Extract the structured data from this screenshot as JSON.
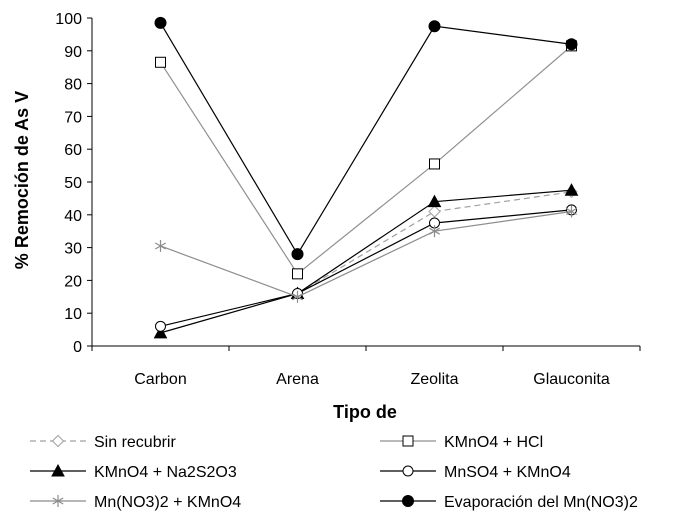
{
  "chart_data": {
    "type": "line",
    "categories": [
      "Carbon",
      "Arena",
      "Zeolita",
      "Glauconita"
    ],
    "xlabel": "Tipo de",
    "ylabel": "% Remoción de As V",
    "ylim": [
      0,
      100
    ],
    "yticks": [
      0,
      10,
      20,
      30,
      40,
      50,
      60,
      70,
      80,
      90,
      100
    ],
    "grid": false,
    "legend_position": "bottom",
    "series": [
      {
        "name": "Sin recubrir",
        "values": [
          null,
          16,
          41,
          47
        ],
        "marker": "diamond-open",
        "color": "#a0a0a0",
        "dash": true
      },
      {
        "name": "KMnO4 + HCl",
        "values": [
          86.5,
          22,
          55.5,
          91.5
        ],
        "marker": "square-open",
        "color": "#909090",
        "dash": false
      },
      {
        "name": "KMnO4 + Na2S2O3",
        "values": [
          4,
          16,
          44,
          47.5
        ],
        "marker": "triangle-filled",
        "color": "#000000",
        "dash": false
      },
      {
        "name": "MnSO4 + KMnO4",
        "values": [
          6,
          16,
          37.5,
          41.5
        ],
        "marker": "circle-open",
        "color": "#000000",
        "dash": false
      },
      {
        "name": "Mn(NO3)2 + KMnO4",
        "values": [
          30.5,
          15,
          35,
          41
        ],
        "marker": "star",
        "color": "#8c8c8c",
        "dash": false
      },
      {
        "name": "Evaporación del Mn(NO3)2",
        "values": [
          98.5,
          28,
          97.5,
          92
        ],
        "marker": "circle-filled",
        "color": "#000000",
        "dash": false
      }
    ]
  }
}
